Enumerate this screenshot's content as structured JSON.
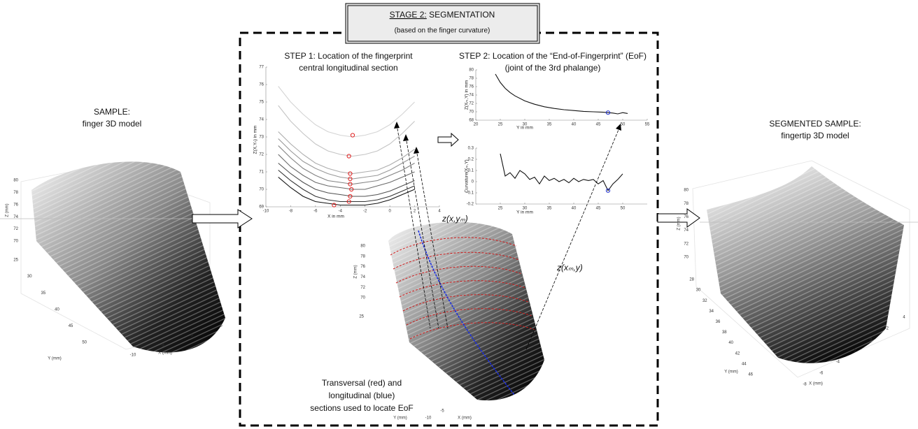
{
  "header": {
    "stage": "STAGE 2:",
    "title": "SEGMENTATION",
    "subtitle": "(based on the finger curvature)"
  },
  "sample": {
    "title": "SAMPLE:",
    "subtitle": "finger 3D model",
    "z_label": "Z (mm)",
    "y_label": "Y (mm)",
    "x_label": "X (mm)",
    "z_ticks": [
      80,
      78,
      76,
      74,
      72,
      70
    ],
    "y_ticks": [
      25,
      30,
      35,
      40,
      45,
      50
    ],
    "x_ticks": [
      -10,
      -5,
      0,
      5
    ]
  },
  "center_model": {
    "z_label": "Z (mm)",
    "y_label": "Y (mm)",
    "x_label": "X (mm)",
    "z_ticks": [
      80,
      78,
      76,
      74,
      72,
      70
    ],
    "y_ticks": [
      25
    ],
    "x_ticks": [
      -10,
      -5
    ],
    "caption": [
      "Transversal (red) and",
      "longitudinal (blue)",
      "sections used to locate EoF"
    ]
  },
  "segmented": {
    "title": "SEGMENTED SAMPLE:",
    "subtitle": "fingertip 3D model",
    "z_label": "Z (mm)",
    "y_label": "Y (mm)",
    "x_label": "X (mm)",
    "z_ticks": [
      80,
      78,
      76,
      74,
      72,
      70
    ],
    "y_ticks": [
      28,
      30,
      32,
      34,
      36,
      38,
      40,
      42,
      44,
      46
    ],
    "x_ticks": [
      -8,
      -6,
      -4,
      -2,
      0,
      2,
      4
    ]
  },
  "annotations": {
    "z_x_ym": "z(x,yₘ)",
    "z_xm_y": "z(xₘ,y)"
  },
  "step1": {
    "title": [
      "STEP 1: Location of the fingerprint",
      "central longitudinal section"
    ],
    "plot": {
      "type": "line",
      "xlabel": "X in mm",
      "ylabel": "Z(X,Yₙ) in mm",
      "xlim": [
        -10,
        4
      ],
      "ylim": [
        69,
        77
      ],
      "xticks": [
        -10,
        -8,
        -6,
        -4,
        -2,
        0,
        2,
        4
      ],
      "yticks": [
        69,
        70,
        71,
        72,
        73,
        74,
        75,
        76,
        77
      ],
      "x": [
        -9,
        -8,
        -7,
        -6,
        -5,
        -4,
        -3,
        -2,
        -1,
        0,
        1,
        2
      ],
      "series": [
        {
          "color": "#d4d4d4",
          "values": [
            75.9,
            75.0,
            74.3,
            73.7,
            73.3,
            73.1,
            73.0,
            73.1,
            73.3,
            73.7,
            74.3,
            75.0
          ]
        },
        {
          "color": "#c4c4c4",
          "values": [
            74.8,
            73.9,
            73.2,
            72.6,
            72.2,
            72.0,
            71.9,
            72.0,
            72.2,
            72.6,
            73.2,
            73.9
          ]
        },
        {
          "color": "#acacac",
          "values": [
            73.3,
            72.6,
            72.0,
            71.5,
            71.2,
            71.0,
            70.9,
            71.0,
            71.1,
            71.4,
            71.8,
            72.3
          ]
        },
        {
          "color": "#989898",
          "values": [
            72.9,
            72.2,
            71.6,
            71.2,
            70.9,
            70.7,
            70.6,
            70.7,
            70.8,
            71.1,
            71.5,
            71.9
          ]
        },
        {
          "color": "#828282",
          "values": [
            72.5,
            71.8,
            71.2,
            70.8,
            70.5,
            70.4,
            70.3,
            70.4,
            70.5,
            70.8,
            71.1,
            71.5
          ]
        },
        {
          "color": "#6a6a6a",
          "values": [
            72.0,
            71.3,
            70.8,
            70.4,
            70.2,
            70.1,
            70.0,
            70.0,
            70.2,
            70.4,
            70.7,
            71.0
          ]
        },
        {
          "color": "#505050",
          "values": [
            71.5,
            70.9,
            70.4,
            70.0,
            69.8,
            69.7,
            69.6,
            69.6,
            69.7,
            69.9,
            70.2,
            70.5
          ]
        },
        {
          "color": "#333333",
          "values": [
            71.1,
            70.5,
            70.0,
            69.6,
            69.4,
            69.3,
            69.3,
            69.3,
            69.4,
            69.6,
            69.9,
            70.2
          ]
        },
        {
          "color": "#111111",
          "values": [
            70.7,
            70.1,
            69.6,
            69.3,
            69.2,
            69.1,
            69.1,
            69.1,
            69.2,
            69.4,
            69.7,
            70.0
          ]
        }
      ],
      "markers": {
        "color": "#e02020",
        "x": [
          -3,
          -3.3,
          -3.2,
          -3.2,
          -3.2,
          -3.1,
          -3.2,
          -3.3,
          -4.5
        ],
        "y": [
          73.1,
          71.9,
          70.9,
          70.6,
          70.3,
          70.0,
          69.6,
          69.3,
          69.1
        ]
      }
    }
  },
  "step2": {
    "title": [
      "STEP 2: Location of the “End-of-Fingerprint” (EoF)",
      "(joint of the 3rd phalange)"
    ],
    "plots": [
      {
        "type": "line",
        "xlabel": "Y in mm",
        "ylabel": "Z(Xₘ,Y) in mm",
        "xlim": [
          20,
          55
        ],
        "ylim": [
          68,
          80
        ],
        "xticks": [
          20,
          25,
          30,
          35,
          40,
          45,
          50,
          55
        ],
        "yticks": [
          68,
          70,
          72,
          74,
          76,
          78,
          80
        ],
        "x": [
          24,
          25,
          26,
          27,
          28,
          30,
          32,
          34,
          36,
          38,
          40,
          42,
          44,
          46,
          47,
          48,
          49,
          50,
          51
        ],
        "series": [
          {
            "color": "#111111",
            "values": [
              79,
              77,
              75.6,
              74.6,
              73.8,
              72.6,
              71.8,
              71.2,
              70.8,
              70.5,
              70.3,
              70.1,
              70.0,
              69.9,
              69.8,
              69.7,
              69.5,
              69.8,
              69.6
            ]
          }
        ],
        "markers": {
          "color": "#2030d0",
          "x": [
            47
          ],
          "y": [
            69.8
          ]
        }
      },
      {
        "type": "line",
        "xlabel": "Y in mm",
        "ylabel": "Curvature(Xₘ,Y)",
        "xlim": [
          20,
          55
        ],
        "ylim": [
          -0.2,
          0.3
        ],
        "xticks": [
          25,
          30,
          35,
          40,
          45,
          50
        ],
        "yticks": [
          -0.2,
          -0.1,
          0,
          0.1,
          0.2,
          0.3
        ],
        "x": [
          25,
          26,
          27,
          28,
          29,
          30,
          31,
          32,
          33,
          34,
          35,
          36,
          37,
          38,
          39,
          40,
          41,
          42,
          43,
          44,
          45,
          46,
          47,
          48,
          49,
          50
        ],
        "series": [
          {
            "color": "#111111",
            "values": [
              0.25,
              0.05,
              0.08,
              0.03,
              0.1,
              0.07,
              0.02,
              0.04,
              -0.02,
              0.05,
              0.01,
              0.03,
              0.0,
              0.02,
              -0.01,
              0.03,
              0.0,
              0.02,
              0.01,
              0.02,
              -0.02,
              0.01,
              -0.08,
              -0.02,
              0.02,
              0.07
            ]
          }
        ],
        "markers": {
          "color": "#2030d0",
          "x": [
            47
          ],
          "y": [
            -0.08
          ]
        }
      }
    ]
  }
}
